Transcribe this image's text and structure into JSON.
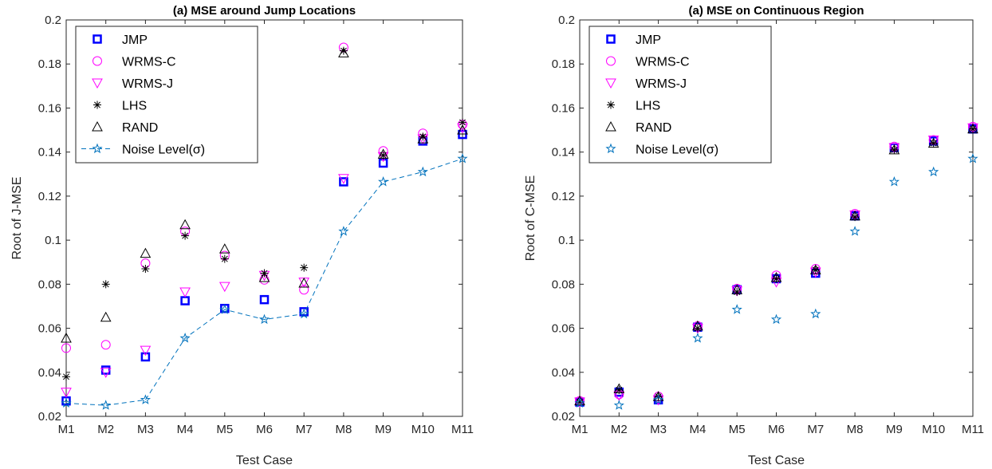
{
  "colors": {
    "JMP": "#0000ff",
    "WRMS-C": "#ff00ff",
    "WRMS-J": "#ff00ff",
    "LHS": "#000000",
    "RAND": "#000000",
    "Noise": "#0072bd"
  },
  "chart_data": [
    {
      "type": "scatter",
      "title": "(a) MSE around Jump Locations",
      "xlabel": "Test Case",
      "ylabel": "Root of J-MSE",
      "categories": [
        "M1",
        "M2",
        "M3",
        "M4",
        "M5",
        "M6",
        "M7",
        "M8",
        "M9",
        "M10",
        "M11"
      ],
      "ylim": [
        0.02,
        0.2
      ],
      "yticks": [
        "0.02",
        "0.04",
        "0.06",
        "0.08",
        "0.1",
        "0.12",
        "0.14",
        "0.16",
        "0.18",
        "0.2"
      ],
      "legend_position": "top-left",
      "series": [
        {
          "name": "JMP",
          "marker": "square",
          "values": [
            0.027,
            0.041,
            0.047,
            0.0725,
            0.069,
            0.073,
            0.0675,
            0.1265,
            0.135,
            0.145,
            0.148
          ]
        },
        {
          "name": "WRMS-C",
          "marker": "circle",
          "values": [
            0.051,
            0.0525,
            0.0895,
            0.104,
            0.093,
            0.082,
            0.0775,
            0.1875,
            0.1405,
            0.1485,
            0.1525
          ]
        },
        {
          "name": "WRMS-J",
          "marker": "triangle-down",
          "values": [
            0.031,
            0.04,
            0.05,
            0.0765,
            0.079,
            0.084,
            0.081,
            0.128,
            0.138,
            0.146,
            0.151
          ]
        },
        {
          "name": "LHS",
          "marker": "asterisk",
          "values": [
            0.038,
            0.08,
            0.087,
            0.102,
            0.0915,
            0.085,
            0.0875,
            0.186,
            0.1385,
            0.147,
            0.1535
          ]
        },
        {
          "name": "RAND",
          "marker": "triangle-up",
          "values": [
            0.0555,
            0.065,
            0.094,
            0.107,
            0.096,
            0.083,
            0.0805,
            0.185,
            0.139,
            0.146,
            0.15
          ]
        },
        {
          "name": "Noise Level(σ)",
          "marker": "pentagram",
          "line": "dashed",
          "values": [
            0.026,
            0.025,
            0.0275,
            0.0555,
            0.0685,
            0.064,
            0.0665,
            0.104,
            0.1265,
            0.131,
            0.137
          ]
        }
      ]
    },
    {
      "type": "scatter",
      "title": "(a) MSE on Continuous Region",
      "xlabel": "Test Case",
      "ylabel": "Root of C-MSE",
      "categories": [
        "M1",
        "M2",
        "M3",
        "M4",
        "M5",
        "M6",
        "M7",
        "M8",
        "M9",
        "M10",
        "M11"
      ],
      "ylim": [
        0.02,
        0.2
      ],
      "yticks": [
        "0.02",
        "0.04",
        "0.06",
        "0.08",
        "0.1",
        "0.12",
        "0.14",
        "0.16",
        "0.18",
        "0.2"
      ],
      "legend_position": "top-left",
      "series": [
        {
          "name": "JMP",
          "marker": "square",
          "values": [
            0.0265,
            0.031,
            0.0275,
            0.0605,
            0.0775,
            0.0825,
            0.085,
            0.111,
            0.142,
            0.145,
            0.1505
          ]
        },
        {
          "name": "WRMS-C",
          "marker": "circle",
          "values": [
            0.027,
            0.03,
            0.029,
            0.061,
            0.078,
            0.084,
            0.087,
            0.112,
            0.1425,
            0.1455,
            0.1515
          ]
        },
        {
          "name": "WRMS-J",
          "marker": "triangle-down",
          "values": [
            0.0265,
            0.0295,
            0.0275,
            0.06,
            0.077,
            0.081,
            0.0855,
            0.1115,
            0.142,
            0.1455,
            0.151
          ]
        },
        {
          "name": "LHS",
          "marker": "asterisk",
          "values": [
            0.0265,
            0.032,
            0.029,
            0.06,
            0.0765,
            0.0825,
            0.0865,
            0.1105,
            0.141,
            0.144,
            0.1505
          ]
        },
        {
          "name": "RAND",
          "marker": "triangle-up",
          "values": [
            0.027,
            0.0325,
            0.029,
            0.061,
            0.0775,
            0.083,
            0.0865,
            0.111,
            0.141,
            0.144,
            0.1505
          ]
        },
        {
          "name": "Noise Level(σ)",
          "marker": "pentagram",
          "line": "none",
          "values": [
            0.026,
            0.025,
            0.0275,
            0.0555,
            0.0685,
            0.064,
            0.0665,
            0.104,
            0.1265,
            0.131,
            0.137
          ]
        }
      ]
    }
  ]
}
